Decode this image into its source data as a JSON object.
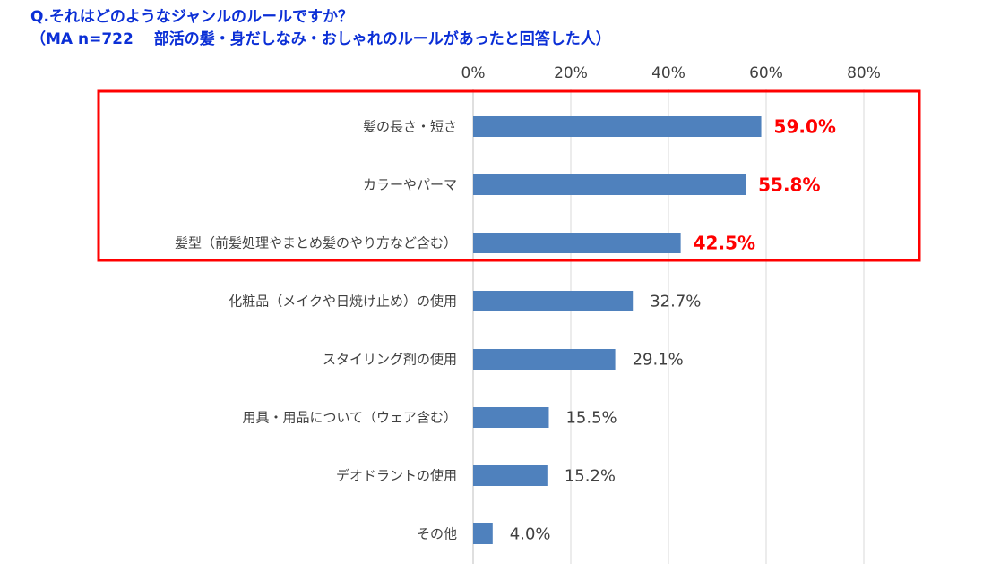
{
  "title_line1": "Q.それはどのようなジャンルのルールですか？",
  "title_line2": "（MA n=722　 部活の髪・身だしなみ・おしゃれのルールがあったと回答した人）",
  "chart_data": {
    "type": "bar",
    "orientation": "horizontal",
    "categories": [
      "髪の長さ・短さ",
      "カラーやパーマ",
      "髪型（前髪処理やまとめ髪のやり方など含む）",
      "化粧品（メイクや日焼け止め）の使用",
      "スタイリング剤の使用",
      "用具・用品について（ウェア含む）",
      "デオドラントの使用",
      "その他"
    ],
    "values": [
      59.0,
      55.8,
      42.5,
      32.7,
      29.1,
      15.5,
      15.2,
      4.0
    ],
    "value_labels": [
      "59.0%",
      "55.8%",
      "42.5%",
      "32.7%",
      "29.1%",
      "15.5%",
      "15.2%",
      "4.0%"
    ],
    "highlighted": [
      true,
      true,
      true,
      false,
      false,
      false,
      false,
      false
    ],
    "x_ticks": [
      "0%",
      "20%",
      "40%",
      "60%",
      "80%"
    ],
    "xlim": [
      0,
      80
    ],
    "axis_position": "top",
    "grid": true,
    "bar_color": "#4f81bd",
    "highlight_label_color": "#ff0000",
    "highlight_box_color": "#ff0000"
  }
}
